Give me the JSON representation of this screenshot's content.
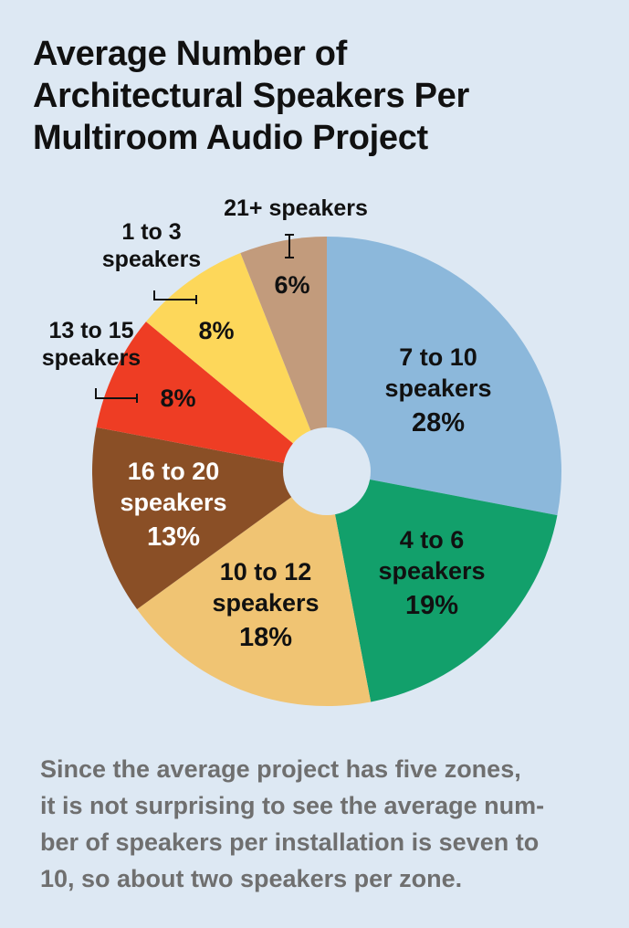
{
  "title": {
    "line1": "Average Number of",
    "line2": "Architectural Speakers Per",
    "line3": "Multiroom Audio Project"
  },
  "chart_data": {
    "type": "pie",
    "donut_hole": true,
    "slices": [
      {
        "label_lines": [
          "7 to 10",
          "speakers"
        ],
        "value": 28,
        "pct_text": "28%",
        "color": "#8cb8db",
        "text_color": "#111111",
        "callout": false
      },
      {
        "label_lines": [
          "4 to 6",
          "speakers"
        ],
        "value": 19,
        "pct_text": "19%",
        "color": "#12a06b",
        "text_color": "#111111",
        "callout": false
      },
      {
        "label_lines": [
          "10 to 12",
          "speakers"
        ],
        "value": 18,
        "pct_text": "18%",
        "color": "#f0c473",
        "text_color": "#111111",
        "callout": false
      },
      {
        "label_lines": [
          "16 to 20",
          "speakers"
        ],
        "value": 13,
        "pct_text": "13%",
        "color": "#8a4f26",
        "text_color": "#ffffff",
        "callout": false
      },
      {
        "label_lines": [
          "13 to 15",
          "speakers"
        ],
        "value": 8,
        "pct_text": "8%",
        "color": "#ee3d24",
        "text_color": "#111111",
        "callout": true
      },
      {
        "label_lines": [
          "1 to 3",
          "speakers"
        ],
        "value": 8,
        "pct_text": "8%",
        "color": "#fdd75a",
        "text_color": "#111111",
        "callout": true
      },
      {
        "label_lines": [
          "21+ speakers"
        ],
        "value": 6,
        "pct_text": "6%",
        "color": "#c29b7c",
        "text_color": "#111111",
        "callout": true
      }
    ]
  },
  "caption": {
    "line1": "Since the average project has five zones,",
    "line2": "it is not surprising to see the average num-",
    "line3": "ber of speakers per installation is seven to",
    "line4": "10, so about two speakers per zone."
  }
}
